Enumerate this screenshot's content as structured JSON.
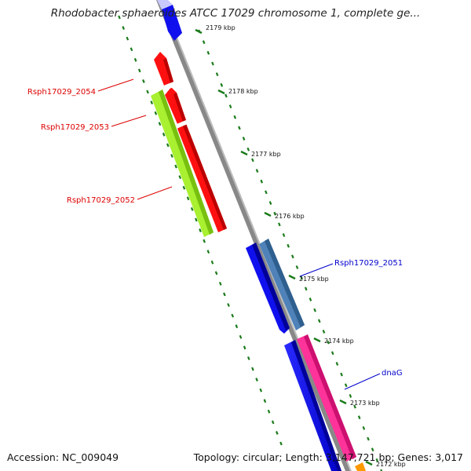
{
  "title": "Rhodobacter sphaeroides ATCC 17029 chromosome 1, complete ge...",
  "footer": {
    "accession": "Accession: NC_009049",
    "summary": "Topology: circular; Length: 3,147,721 bp; Genes: 3,017"
  },
  "ticks": [
    {
      "label": "2179 kbp"
    },
    {
      "label": "2178 kbp"
    },
    {
      "label": "2177 kbp"
    },
    {
      "label": "2176 kbp"
    },
    {
      "label": "2175 kbp"
    },
    {
      "label": "2174 kbp"
    },
    {
      "label": "2173 kbp"
    },
    {
      "label": "2172 kbp"
    }
  ],
  "gene_labels": [
    {
      "label": "Rsph17029_2054",
      "color": "#dd0000"
    },
    {
      "label": "Rsph17029_2053",
      "color": "#dd0000"
    },
    {
      "label": "Rsph17029_2052",
      "color": "#dd0000"
    },
    {
      "label": "Rsph17029_2051",
      "color": "#0000cc"
    },
    {
      "label": "dnaG",
      "color": "#0000cc"
    }
  ],
  "colors": {
    "backbone": "#888888",
    "ring_dots": "#1a7a1a",
    "red_gene": "#ff1010",
    "lime_gene": "#a8f030",
    "blue_gene": "#1010ee",
    "steel_gene": "#4f82b8",
    "pink_gene": "#ff3399",
    "orange_gene": "#ff9900"
  }
}
